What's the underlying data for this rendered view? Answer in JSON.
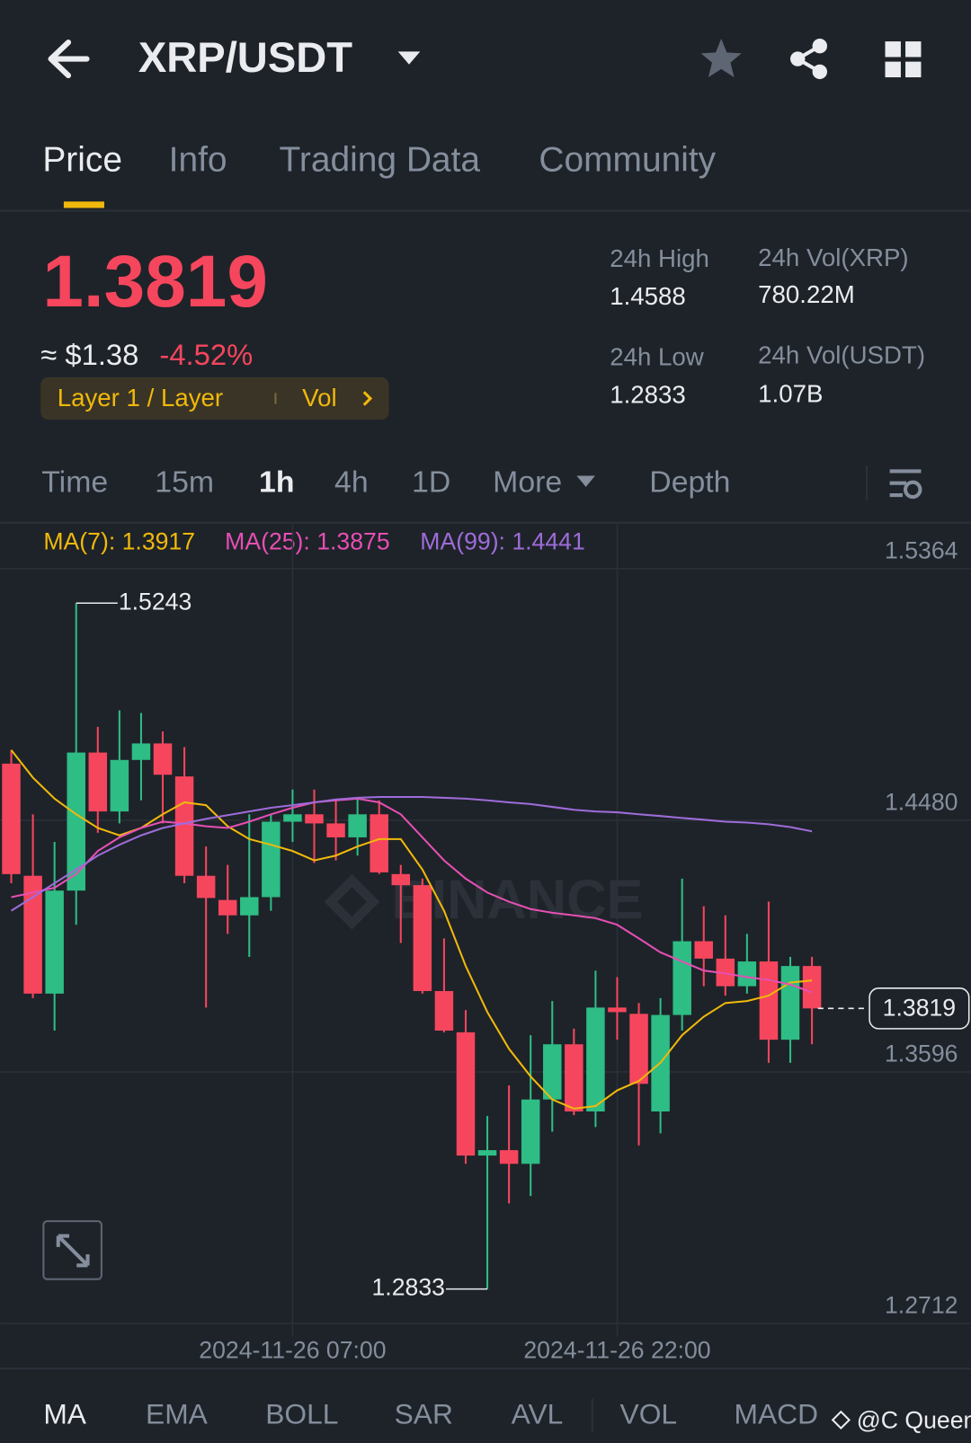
{
  "header": {
    "title": "XRP/USDT"
  },
  "tabs": [
    "Price",
    "Info",
    "Trading Data",
    "Community"
  ],
  "price": {
    "last": "1.3819",
    "usd": "≈ $1.38",
    "change": "-4.52%",
    "tag": "Layer 1 / Layer",
    "tag_vol": "Vol"
  },
  "stats": [
    {
      "label": "24h High",
      "value": "1.4588"
    },
    {
      "label": "24h Vol(XRP)",
      "value": "780.22M"
    },
    {
      "label": "24h Low",
      "value": "1.2833"
    },
    {
      "label": "24h Vol(USDT)",
      "value": "1.07B"
    }
  ],
  "intervals": [
    "Time",
    "15m",
    "1h",
    "4h",
    "1D",
    "More",
    "Depth"
  ],
  "indicators": [
    "MA",
    "EMA",
    "BOLL",
    "SAR",
    "AVL",
    "VOL",
    "MACD"
  ],
  "footer": "@C Queen",
  "chart_data": {
    "type": "candlestick",
    "watermark": "BINANCE",
    "up_color": "#2ebd85",
    "down_color": "#f6465d",
    "grid": true,
    "categories": [
      null,
      null,
      null,
      null,
      null,
      null,
      null,
      null,
      null,
      null,
      null,
      null,
      null,
      "2024-11-26 07:00",
      null,
      null,
      null,
      null,
      null,
      null,
      null,
      null,
      null,
      null,
      null,
      null,
      null,
      null,
      "2024-11-26 22:00",
      null,
      null,
      null,
      null,
      null,
      null,
      null,
      null,
      null
    ],
    "open": [
      1.4679,
      1.4285,
      1.3871,
      1.4233,
      1.4718,
      1.4511,
      1.4692,
      1.475,
      1.4634,
      1.4285,
      1.42,
      1.4146,
      1.421,
      1.4475,
      1.4501,
      1.4469,
      1.442,
      1.4501,
      1.4291,
      1.4252,
      1.388,
      1.3735,
      1.3302,
      1.3321,
      1.3273,
      1.3499,
      1.3693,
      1.3457,
      1.3822,
      1.38,
      1.3457,
      1.3796,
      1.4055,
      1.3994,
      1.3897,
      1.3984,
      1.3709,
      1.3968
    ],
    "high": [
      1.4727,
      1.4501,
      1.4404,
      1.5243,
      1.4808,
      1.4866,
      1.4857,
      1.4792,
      1.4737,
      1.4388,
      1.4323,
      1.4501,
      1.4501,
      1.4588,
      1.4588,
      1.455,
      1.4556,
      1.455,
      1.4323,
      1.4275,
      1.4065,
      1.3813,
      1.3441,
      1.3548,
      1.3725,
      1.3845,
      1.3748,
      1.3952,
      1.3929,
      1.3838,
      1.3855,
      1.4275,
      1.4178,
      1.4146,
      1.4081,
      1.4194,
      1.4,
      1.4
    ],
    "low": [
      1.4259,
      1.3855,
      1.3741,
      1.4113,
      1.4436,
      1.4469,
      1.455,
      1.4469,
      1.4259,
      1.3822,
      1.4081,
      1.4,
      1.4162,
      1.4404,
      1.433,
      1.4339,
      1.4356,
      1.4291,
      1.4049,
      1.3871,
      1.3735,
      1.3273,
      1.2833,
      1.3134,
      1.316,
      1.3386,
      1.3444,
      1.3402,
      1.3709,
      1.3338,
      1.338,
      1.3741,
      1.3897,
      1.3864,
      1.3871,
      1.3628,
      1.3628,
      1.3693
    ],
    "close": [
      1.4291,
      1.3871,
      1.4233,
      1.4718,
      1.4511,
      1.4692,
      1.475,
      1.464,
      1.4285,
      1.4207,
      1.4146,
      1.421,
      1.4475,
      1.4501,
      1.4469,
      1.442,
      1.4501,
      1.4297,
      1.4252,
      1.388,
      1.3741,
      1.3302,
      1.3321,
      1.3273,
      1.3499,
      1.3693,
      1.3457,
      1.3822,
      1.3806,
      1.3554,
      1.3796,
      1.4055,
      1.3994,
      1.3897,
      1.3984,
      1.3709,
      1.3968,
      1.3819
    ],
    "series": [
      {
        "name": "MA(7): 1.3917",
        "color": "#f0b90b",
        "values": [
          1.4727,
          1.463,
          1.4556,
          1.4501,
          1.4453,
          1.4427,
          1.4453,
          1.4501,
          1.4543,
          1.4533,
          1.4459,
          1.4414,
          1.4394,
          1.4372,
          1.4339,
          1.4356,
          1.4388,
          1.4414,
          1.4414,
          1.4307,
          1.4162,
          1.3968,
          1.3806,
          1.3677,
          1.358,
          1.3499,
          1.3467,
          1.3476,
          1.3531,
          1.3564,
          1.3628,
          1.3725,
          1.379,
          1.3838,
          1.3845,
          1.3864,
          1.391,
          1.3917
        ]
      },
      {
        "name": "MA(25): 1.3875",
        "color": "#e64fb4",
        "values": [
          1.421,
          1.4226,
          1.4243,
          1.4291,
          1.4372,
          1.442,
          1.4453,
          1.4475,
          1.4469,
          1.4459,
          1.4453,
          1.4475,
          1.4501,
          1.4524,
          1.4543,
          1.455,
          1.4556,
          1.4543,
          1.4501,
          1.442,
          1.4339,
          1.4275,
          1.4226,
          1.4194,
          1.4168,
          1.4155,
          1.4146,
          1.4136,
          1.4113,
          1.4065,
          1.4016,
          1.3984,
          1.3952,
          1.3942,
          1.3929,
          1.3919,
          1.3903,
          1.3875
        ]
      },
      {
        "name": "MA(99): 1.4441",
        "color": "#9e6cd9",
        "values": [
          1.4162,
          1.421,
          1.4259,
          1.4307,
          1.4356,
          1.4394,
          1.4427,
          1.4453,
          1.4469,
          1.4485,
          1.4498,
          1.4511,
          1.4524,
          1.4533,
          1.4543,
          1.4553,
          1.4559,
          1.4562,
          1.4562,
          1.4562,
          1.4559,
          1.4556,
          1.455,
          1.4543,
          1.4537,
          1.4527,
          1.4517,
          1.4511,
          1.4508,
          1.4501,
          1.4495,
          1.4488,
          1.4482,
          1.4475,
          1.4472,
          1.4466,
          1.4456,
          1.4441
        ]
      }
    ],
    "ylim": [
      1.2706,
      1.5519
    ],
    "yticks": [
      1.2712,
      1.3596,
      {
        "value": 1.448,
        "label": "1.4480"
      },
      1.5364
    ]
  }
}
